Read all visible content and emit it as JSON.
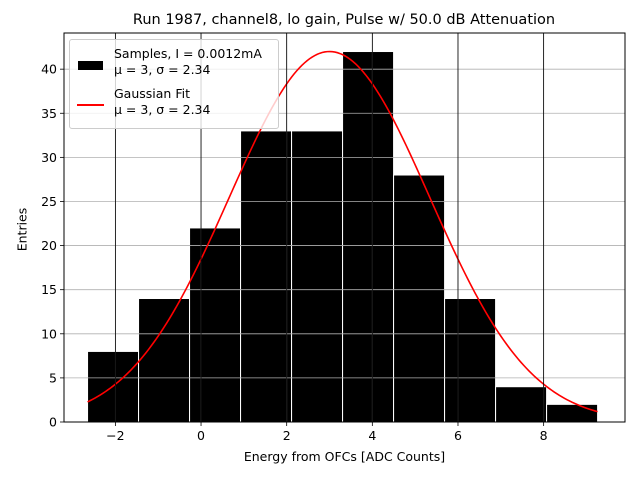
{
  "chart_data": {
    "type": "bar",
    "title": "Run 1987, channel8, lo gain, Pulse w/ 50.0 dB Attenuation",
    "xlabel": "Energy from OFCs [ADC Counts]",
    "ylabel": "Entries",
    "xlim": [
      -3.2,
      9.9
    ],
    "ylim": [
      0,
      44.1
    ],
    "xticks": [
      -2,
      0,
      2,
      4,
      6,
      8
    ],
    "xtick_labels": [
      "−2",
      "0",
      "2",
      "4",
      "6",
      "8"
    ],
    "yticks": [
      0,
      5,
      10,
      15,
      20,
      25,
      30,
      35,
      40
    ],
    "ytick_labels": [
      "0",
      "5",
      "10",
      "15",
      "20",
      "25",
      "30",
      "35",
      "40"
    ],
    "grid": true,
    "legend_position": "top-left",
    "histogram": {
      "name": "Samples, I = 0.0012mA",
      "bin_edges": [
        -2.65,
        -1.459,
        -0.268,
        0.923,
        2.114,
        3.305,
        4.496,
        5.687,
        6.878,
        8.069,
        9.26
      ],
      "values": [
        8,
        14,
        22,
        33,
        33,
        42,
        28,
        14,
        4,
        2
      ],
      "color": "#000000"
    },
    "fit": {
      "name": "Gaussian Fit",
      "type": "line",
      "mu": 3,
      "sigma": 2.34,
      "amplitude": 42,
      "x_range": [
        -2.65,
        9.26
      ],
      "color": "#ff0000"
    },
    "legend": [
      {
        "line1": "Samples, I = 0.0012mA",
        "line2": "μ = 3, σ = 2.34"
      },
      {
        "line1": "Gaussian Fit",
        "line2": "μ = 3, σ = 2.34"
      }
    ]
  }
}
